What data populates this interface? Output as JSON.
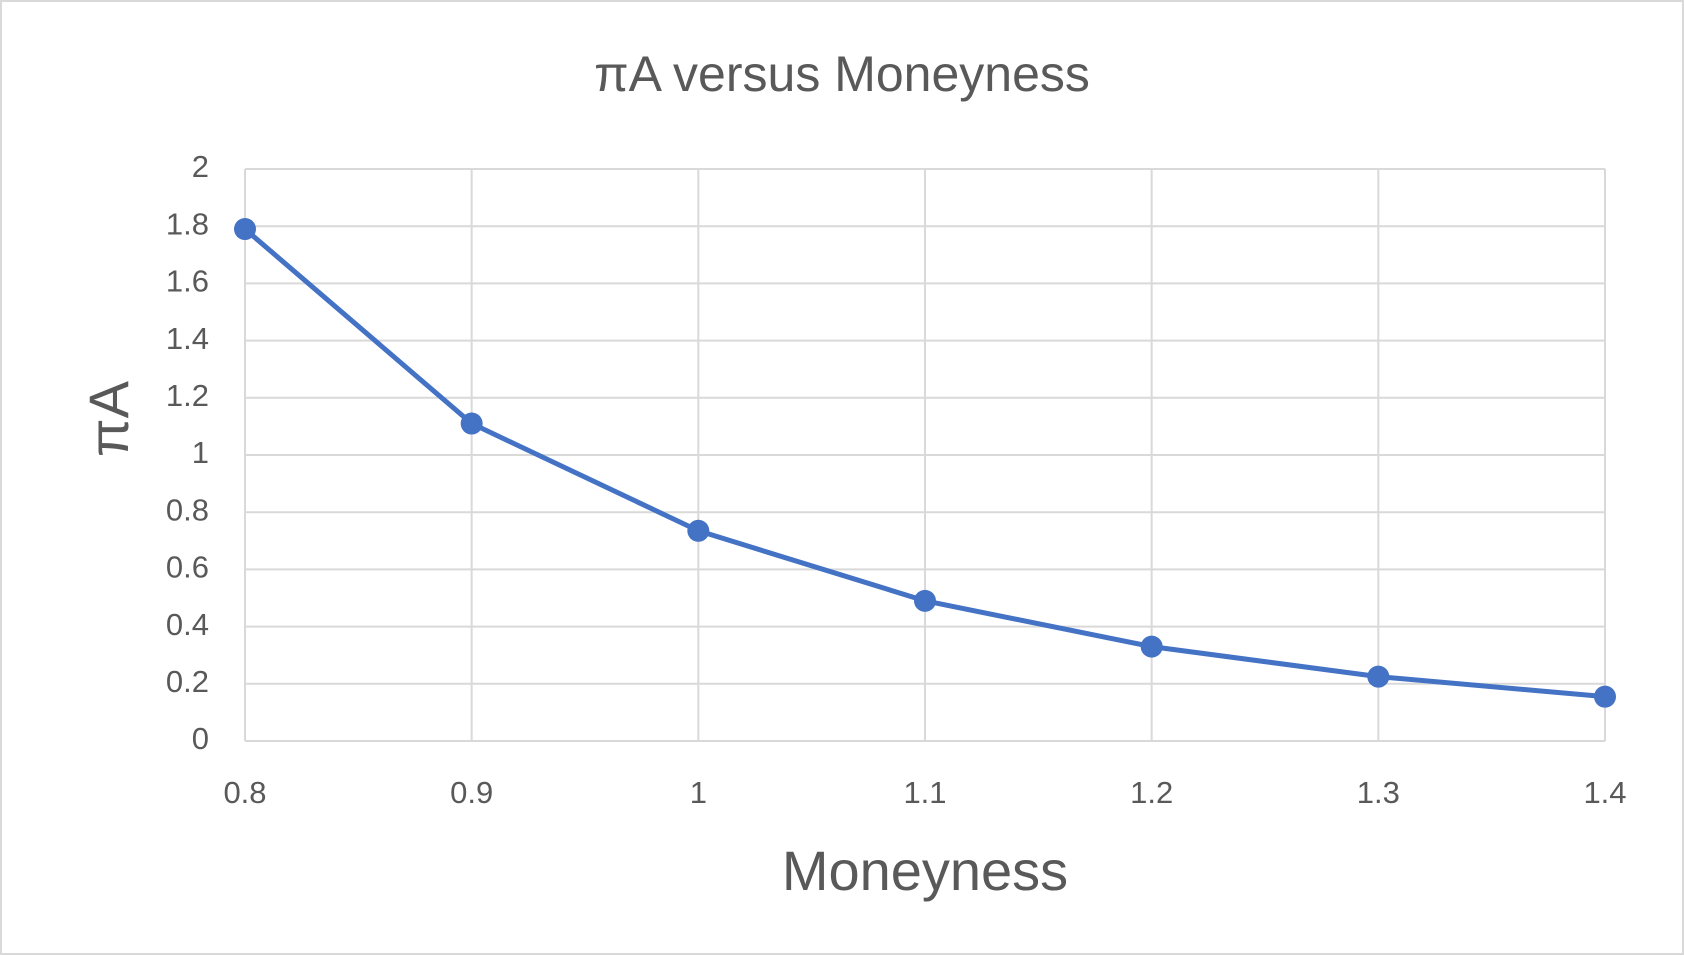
{
  "chart_data": {
    "type": "line",
    "title": "πA versus Moneyness",
    "x_label": "Moneyness",
    "y_label": "πA",
    "x": [
      0.8,
      0.9,
      1,
      1.1,
      1.2,
      1.3,
      1.4
    ],
    "values": [
      1.79,
      1.11,
      0.735,
      0.49,
      0.33,
      0.225,
      0.155
    ],
    "color": "#4472c4",
    "xlim": [
      0.8,
      1.4
    ],
    "xticks": [
      0.8,
      0.9,
      1,
      1.1,
      1.2,
      1.3,
      1.4
    ],
    "ylim": [
      0,
      2
    ],
    "yticks": [
      0,
      0.2,
      0.4,
      0.6,
      0.8,
      1,
      1.2,
      1.4,
      1.6,
      1.8,
      2
    ],
    "grid": true,
    "markers": true
  }
}
